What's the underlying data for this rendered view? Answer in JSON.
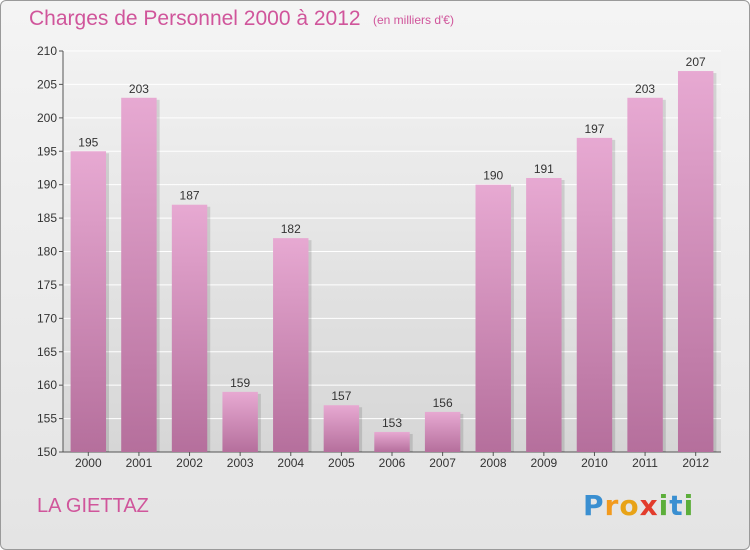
{
  "header": {
    "title": "Charges de Personnel 2000 à 2012",
    "subtitle": "(en milliers d'€)"
  },
  "footer": {
    "commune": "LA GIETTAZ",
    "logo_letters": [
      "P",
      "r",
      "o",
      "x",
      "i",
      "t",
      "i"
    ],
    "logo_colors": [
      "#3a8fd1",
      "#f29a1e",
      "#e8a317",
      "#e23c2c",
      "#5cae3a",
      "#3a8fd1",
      "#5cae3a"
    ]
  },
  "colors": {
    "bar": "#d98cbc",
    "bar_light": "#e7a9d2",
    "bar_dark": "#b56f9c",
    "text_accent": "#d0559b",
    "grid": "#ffffff"
  },
  "chart_data": {
    "type": "bar",
    "title": "Charges de Personnel 2000 à 2012",
    "subtitle": "(en milliers d'€)",
    "categories": [
      "2000",
      "2001",
      "2002",
      "2003",
      "2004",
      "2005",
      "2006",
      "2007",
      "2008",
      "2009",
      "2010",
      "2011",
      "2012"
    ],
    "values": [
      195,
      203,
      187,
      159,
      182,
      157,
      153,
      156,
      190,
      191,
      197,
      203,
      207
    ],
    "ylim": [
      150,
      210
    ],
    "yticks": [
      150,
      155,
      160,
      165,
      170,
      175,
      180,
      185,
      190,
      195,
      200,
      205,
      210
    ],
    "grid": true,
    "xlabel": "",
    "ylabel": ""
  }
}
